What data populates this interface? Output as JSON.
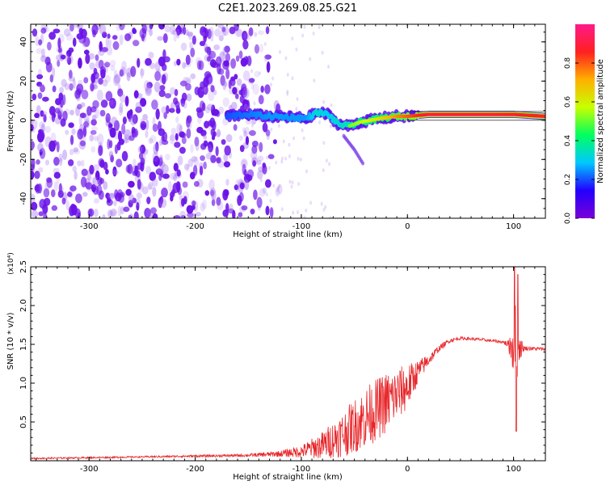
{
  "title": "C2E1.2023.269.08.25.G21",
  "chart_data": [
    {
      "type": "heatmap",
      "title": "",
      "xlabel": "Height of straight line (km)",
      "ylabel": "Frequency (Hz)",
      "xlim": [
        -355,
        130
      ],
      "ylim": [
        -50,
        49
      ],
      "xticks": [
        -300,
        -200,
        -100,
        0,
        100
      ],
      "yticks": [
        -40,
        -20,
        0,
        20,
        40
      ],
      "colorbar": {
        "label": "Normalized spectral amplitude",
        "range": [
          0.0,
          1.0
        ],
        "ticks": [
          0.0,
          0.2,
          0.4,
          0.6,
          0.8
        ],
        "colormap": [
          "#7b00d6",
          "#2200ff",
          "#00c8ff",
          "#00ff60",
          "#c8ff00",
          "#ffb000",
          "#ff2020",
          "#ff1a8a"
        ]
      },
      "features": {
        "noise_region_x": [
          -355,
          -140
        ],
        "noise_amplitude": 0.05,
        "signal_track": {
          "x": [
            -170,
            -150,
            -130,
            -110,
            -95,
            -85,
            -75,
            -65,
            -55,
            -45,
            -35,
            -25,
            -10,
            0,
            20,
            50,
            80,
            100,
            130
          ],
          "frequency": [
            2,
            3,
            2,
            1.5,
            1,
            4,
            3,
            -2,
            -3,
            -1,
            0,
            1,
            2,
            2,
            3,
            3,
            3,
            3,
            2
          ],
          "amplitude": [
            0.2,
            0.25,
            0.3,
            0.3,
            0.3,
            0.45,
            0.4,
            0.45,
            0.5,
            0.55,
            0.6,
            0.65,
            0.75,
            0.8,
            0.9,
            0.9,
            0.9,
            0.88,
            0.85
          ]
        },
        "branch": {
          "x": [
            -60,
            -50,
            -42
          ],
          "frequency": [
            -8,
            -15,
            -22
          ]
        }
      }
    },
    {
      "type": "line",
      "title": "",
      "xlabel": "Height of straight line (km)",
      "ylabel": "SNR (10 * v/v)",
      "yscale_label": "(x10⁴)",
      "xlim": [
        -355,
        130
      ],
      "ylim": [
        0,
        2.5
      ],
      "xticks": [
        -300,
        -200,
        -100,
        0,
        100
      ],
      "yticks": [
        0.5,
        1.0,
        1.5,
        2.0,
        2.5
      ],
      "color": "#e8262a",
      "envelope": {
        "x": [
          -355,
          -300,
          -250,
          -200,
          -150,
          -120,
          -100,
          -80,
          -60,
          -40,
          -20,
          0,
          10,
          20,
          30,
          40,
          50,
          70,
          90,
          95,
          100,
          102,
          105,
          110,
          130
        ],
        "base": [
          0.03,
          0.04,
          0.05,
          0.06,
          0.07,
          0.09,
          0.12,
          0.2,
          0.35,
          0.55,
          0.75,
          0.95,
          1.15,
          1.3,
          1.45,
          1.55,
          1.58,
          1.56,
          1.53,
          1.5,
          1.48,
          1.47,
          1.46,
          1.45,
          1.44
        ],
        "ripple": [
          0.01,
          0.01,
          0.01,
          0.015,
          0.02,
          0.04,
          0.08,
          0.18,
          0.3,
          0.4,
          0.4,
          0.3,
          0.15,
          0.08,
          0.04,
          0.03,
          0.02,
          0.02,
          0.02,
          0.05,
          0.4,
          0.6,
          0.2,
          0.03,
          0.02
        ]
      },
      "peaks": [
        {
          "x": 101,
          "y": 2.5
        },
        {
          "x": 102.5,
          "y": 0.38
        },
        {
          "x": 104,
          "y": 2.4
        }
      ]
    }
  ]
}
